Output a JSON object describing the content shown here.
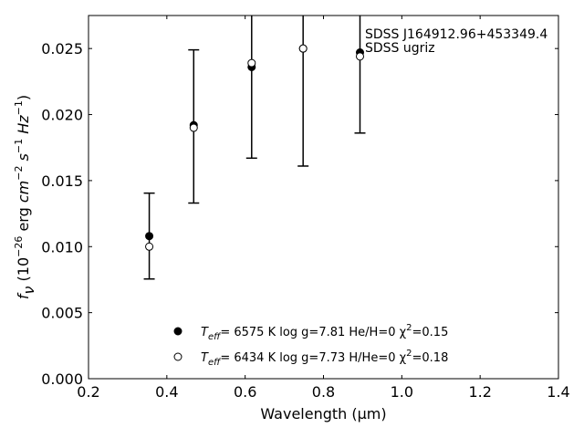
{
  "chart_data": {
    "type": "scatter",
    "xlabel": "Wavelength (μm)",
    "ylabel": "f_ν (10^-26 erg cm^-2 s^-1 Hz^-1)",
    "xlim": [
      0.2,
      1.4
    ],
    "ylim": [
      0.0,
      0.0275
    ],
    "x_ticks": [
      "0.2",
      "0.4",
      "0.6",
      "0.8",
      "1.0",
      "1.2",
      "1.4"
    ],
    "y_ticks": [
      "0.000",
      "0.005",
      "0.010",
      "0.015",
      "0.020",
      "0.025"
    ],
    "annotation": [
      "SDSS J164912.96+453349.4",
      "SDSS ugriz"
    ],
    "observed": {
      "x": [
        0.3551,
        0.4686,
        0.6166,
        0.748,
        0.8932
      ],
      "y": [
        0.0108,
        0.0191,
        0.0235,
        0.0249,
        0.0247
      ],
      "yerr": [
        0.00325,
        0.0058,
        0.0068,
        0.0088,
        0.0061
      ]
    },
    "series": [
      {
        "name": "T_eff= 6575 K log g=7.81 He/H=0 χ²=0.15",
        "marker": "filled-circle",
        "x": [
          0.3551,
          0.4686,
          0.6166,
          0.748,
          0.8932
        ],
        "y": [
          0.0108,
          0.0192,
          0.0236,
          0.025,
          0.0247
        ]
      },
      {
        "name": "T_eff= 6434 K log g=7.73 H/He=0 χ²=0.18",
        "marker": "open-circle",
        "x": [
          0.3551,
          0.4686,
          0.6166,
          0.748,
          0.8932
        ],
        "y": [
          0.01,
          0.019,
          0.0239,
          0.025,
          0.0244
        ]
      }
    ],
    "legend": [
      {
        "label_parts": [
          "T",
          "eff",
          "=  6575 K  log g=7.81  He/H=0  χ",
          "2",
          "=0.15"
        ],
        "marker": "filled"
      },
      {
        "label_parts": [
          "T",
          "eff",
          "=  6434 K  log g=7.73  H/He=0  χ",
          "2",
          "=0.18"
        ],
        "marker": "open"
      }
    ],
    "legend_position": "bottom-center",
    "grid": false
  }
}
